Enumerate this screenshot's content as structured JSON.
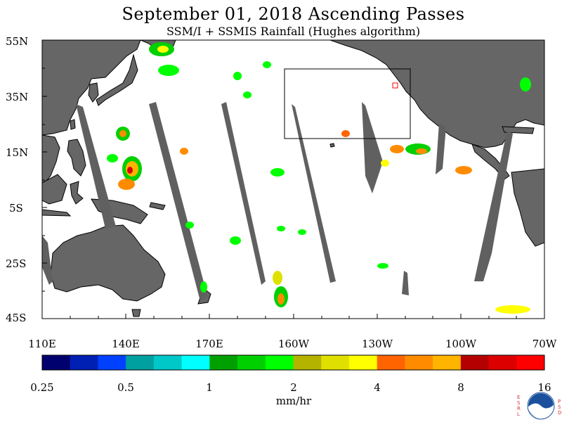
{
  "title": "September 01, 2018  Ascending Passes",
  "subtitle": "SSM/I + SSMIS Rainfall (Hughes algorithm)",
  "lat_labels": [
    "55N",
    "35N",
    "15N",
    "5S",
    "25S",
    "45S"
  ],
  "lon_labels": [
    "110E",
    "140E",
    "170E",
    "160W",
    "130W",
    "100W",
    "70W"
  ],
  "colorbar": {
    "colors": [
      "#00006e",
      "#0020b4",
      "#0040ff",
      "#00a0a0",
      "#00c8c8",
      "#00ffff",
      "#00a000",
      "#00d000",
      "#00ff00",
      "#b4b400",
      "#e0e000",
      "#ffff00",
      "#ff6400",
      "#ff8c00",
      "#ffb400",
      "#b40000",
      "#dc0000",
      "#ff0000"
    ],
    "tick_labels": [
      "0.25",
      "0.5",
      "1",
      "2",
      "4",
      "8",
      "16"
    ],
    "units": "mm/hr"
  },
  "colors": {
    "land": "#666666",
    "no_data_swath": "#606060",
    "box_outline": "#000000",
    "marker": "#ff0000"
  },
  "logo": {
    "left_letters": "ESRL",
    "right_letters": "PSD",
    "name": "noaa-logo"
  }
}
